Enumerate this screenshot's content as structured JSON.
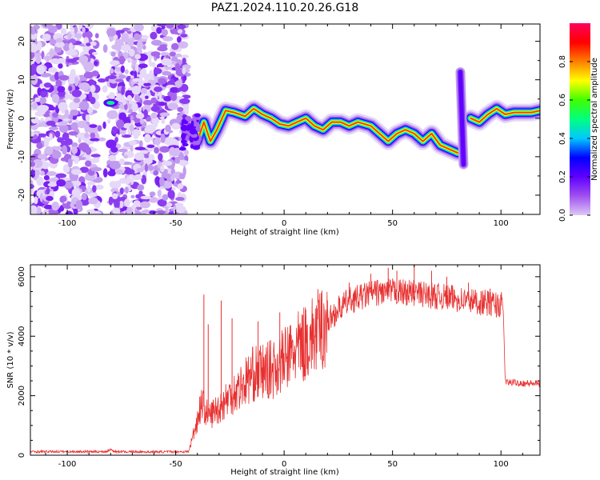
{
  "title": "PAZ1.2024.110.20.26.G18",
  "chart_data": [
    {
      "type": "heatmap",
      "xlabel": "Height of straight line (km)",
      "ylabel": "Frequency (Hz)",
      "xlim": [
        -117,
        118
      ],
      "ylim": [
        -25,
        24.5
      ],
      "x_ticks": [
        -100,
        -50,
        0,
        50,
        100
      ],
      "y_ticks": [
        -20,
        -10,
        0,
        10,
        20
      ],
      "colorbar": {
        "label": "Normalized spectral amplitude",
        "range": [
          0,
          1
        ],
        "ticks": [
          0.0,
          0.2,
          0.4,
          0.6,
          0.8
        ],
        "colors": [
          "#dcc8f5",
          "#a050f0",
          "#6000ff",
          "#0000ff",
          "#00c8ff",
          "#00ff80",
          "#40ff00",
          "#ffff00",
          "#ff8000",
          "#ff0000",
          "#ff0060"
        ]
      },
      "ridge_track": [
        [
          -43,
          -3
        ],
        [
          -40,
          -6
        ],
        [
          -37,
          -1
        ],
        [
          -34,
          -6
        ],
        [
          -31,
          -3
        ],
        [
          -27,
          2
        ],
        [
          -23,
          1.5
        ],
        [
          -18,
          0.5
        ],
        [
          -14,
          2.5
        ],
        [
          -10,
          1
        ],
        [
          -6,
          0
        ],
        [
          -2,
          -1.5
        ],
        [
          2,
          -2
        ],
        [
          6,
          -1
        ],
        [
          10,
          0
        ],
        [
          14,
          -2
        ],
        [
          18,
          -3
        ],
        [
          22,
          -1
        ],
        [
          26,
          -1
        ],
        [
          30,
          -2
        ],
        [
          34,
          -1
        ],
        [
          40,
          -2
        ],
        [
          44,
          -4
        ],
        [
          48,
          -6
        ],
        [
          52,
          -4
        ],
        [
          56,
          -3
        ],
        [
          60,
          -4
        ],
        [
          64,
          -6
        ],
        [
          68,
          -4
        ],
        [
          72,
          -7
        ],
        [
          76,
          -8
        ],
        [
          80,
          -9
        ]
      ],
      "ridge_track_2": [
        [
          86,
          0
        ],
        [
          90,
          -1
        ],
        [
          94,
          1
        ],
        [
          98,
          2.5
        ],
        [
          102,
          1
        ],
        [
          106,
          1.5
        ],
        [
          110,
          1.5
        ],
        [
          114,
          1.5
        ],
        [
          118,
          2
        ]
      ],
      "vertical_streak": {
        "x": 82,
        "y_range": [
          -12,
          12
        ]
      },
      "noise_region_x": [
        -117,
        -45
      ]
    },
    {
      "type": "line",
      "xlabel": "Height of straight line (km)",
      "ylabel": "SNR (10 * v/v)",
      "xlim": [
        -117,
        118
      ],
      "ylim": [
        0,
        6400
      ],
      "x_ticks": [
        -100,
        -50,
        0,
        50,
        100
      ],
      "y_ticks": [
        0,
        2000,
        4000,
        6000
      ],
      "line_color": "#e83030",
      "envelope": [
        [
          -117,
          120
        ],
        [
          -82,
          120
        ],
        [
          -80,
          200
        ],
        [
          -78,
          120
        ],
        [
          -60,
          110
        ],
        [
          -44,
          120
        ],
        [
          -43,
          400
        ],
        [
          -40,
          1200
        ],
        [
          -38,
          1800
        ],
        [
          -35,
          1300
        ],
        [
          -30,
          1600
        ],
        [
          -25,
          2000
        ],
        [
          -20,
          2300
        ],
        [
          -15,
          2700
        ],
        [
          -10,
          2800
        ],
        [
          -5,
          2900
        ],
        [
          0,
          3200
        ],
        [
          5,
          3500
        ],
        [
          10,
          3800
        ],
        [
          15,
          4100
        ],
        [
          20,
          4500
        ],
        [
          25,
          4900
        ],
        [
          30,
          5200
        ],
        [
          35,
          5300
        ],
        [
          40,
          5450
        ],
        [
          50,
          5500
        ],
        [
          60,
          5450
        ],
        [
          70,
          5350
        ],
        [
          80,
          5250
        ],
        [
          90,
          5150
        ],
        [
          100,
          5050
        ],
        [
          101,
          5000
        ],
        [
          102,
          2450
        ],
        [
          118,
          2400
        ]
      ],
      "spikes": [
        [
          -37,
          5400
        ],
        [
          -35,
          4400
        ],
        [
          -29,
          5200
        ],
        [
          -24,
          4600
        ],
        [
          -12,
          4500
        ],
        [
          -2,
          4800
        ],
        [
          10,
          4900
        ],
        [
          20,
          5200
        ],
        [
          30,
          5800
        ],
        [
          40,
          6100
        ],
        [
          48,
          6300
        ],
        [
          52,
          6200
        ],
        [
          60,
          6400
        ],
        [
          68,
          6200
        ],
        [
          75,
          6000
        ],
        [
          85,
          5800
        ],
        [
          95,
          5600
        ]
      ]
    }
  ]
}
